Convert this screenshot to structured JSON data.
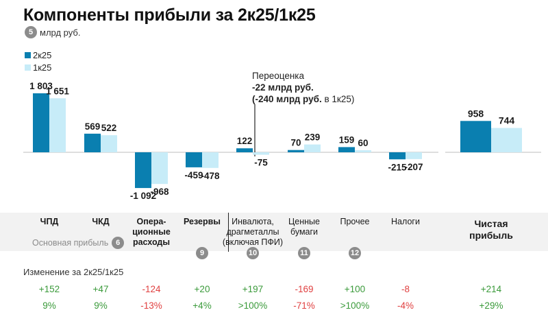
{
  "title": "Компоненты прибыли за 2к25/1к25",
  "units": {
    "badge": "5",
    "text": "млрд руб."
  },
  "legend": [
    {
      "label": "2к25",
      "color": "#0a7fb0"
    },
    {
      "label": "1к25",
      "color": "#c7ecf8"
    }
  ],
  "annotation": {
    "line1": "Переоценка",
    "line2": "-22 млрд руб.",
    "line3_bold": "(-240 млрд руб.",
    "line3_rest": " в 1к25)"
  },
  "core_profit": {
    "label": "Основная прибыль",
    "badge": "6"
  },
  "change_title": "Изменение за 2к25/1к25",
  "colors": {
    "positive": "#3a9a3a",
    "negative": "#e04040"
  },
  "chart_data": {
    "type": "bar",
    "title": "Компоненты прибыли за 2к25/1к25",
    "unit": "млрд руб.",
    "series_names": [
      "2к25",
      "1к25"
    ],
    "categories": [
      {
        "lines": [
          "ЧПД"
        ],
        "v2": 1803,
        "v1": 1651,
        "l2": "1 803",
        "l1": "1 651",
        "badge": "",
        "change": "+152",
        "pct": "9%",
        "sign": "pos",
        "style": "bold"
      },
      {
        "lines": [
          "ЧКД"
        ],
        "v2": 569,
        "v1": 522,
        "l2": "569",
        "l1": "522",
        "badge": "",
        "change": "+47",
        "pct": "9%",
        "sign": "pos",
        "style": "bold"
      },
      {
        "lines": [
          "Опера-",
          "ционные",
          "расходы"
        ],
        "v2": -1092,
        "v1": -968,
        "l2": "-1 092",
        "l1": "-968",
        "badge": "",
        "change": "-124",
        "pct": "-13%",
        "sign": "neg",
        "style": "bold"
      },
      {
        "lines": [
          "Резервы"
        ],
        "v2": -459,
        "v1": -478,
        "l2": "-459",
        "l1": "-478",
        "badge": "9",
        "change": "+20",
        "pct": "+4%",
        "sign": "pos",
        "style": "bold"
      },
      {
        "lines": [
          "Инвалюта,",
          "драгметаллы",
          "(включая ПФИ)"
        ],
        "v2": 122,
        "v1": -75,
        "l2": "122",
        "l1": "-75",
        "badge": "10",
        "change": "+197",
        "pct": ">100%",
        "sign": "pos",
        "style": "normal"
      },
      {
        "lines": [
          "Ценные",
          "бумаги"
        ],
        "v2": 70,
        "v1": 239,
        "l2": "70",
        "l1": "239",
        "badge": "11",
        "change": "-169",
        "pct": "-71%",
        "sign": "neg",
        "style": "normal"
      },
      {
        "lines": [
          "Прочее"
        ],
        "v2": 159,
        "v1": 60,
        "l2": "159",
        "l1": "60",
        "badge": "12",
        "change": "+100",
        "pct": ">100%",
        "sign": "pos",
        "style": "normal"
      },
      {
        "lines": [
          "Налоги"
        ],
        "v2": -215,
        "v1": -207,
        "l2": "-215",
        "l1": "-207",
        "badge": "",
        "change": "-8",
        "pct": "-4%",
        "sign": "neg",
        "style": "normal"
      },
      {
        "lines": [
          "Чистая",
          "прибыль"
        ],
        "v2": 958,
        "v1": 744,
        "l2": "958",
        "l1": "744",
        "badge": "",
        "change": "+214",
        "pct": "+29%",
        "sign": "pos",
        "style": "big"
      }
    ]
  }
}
